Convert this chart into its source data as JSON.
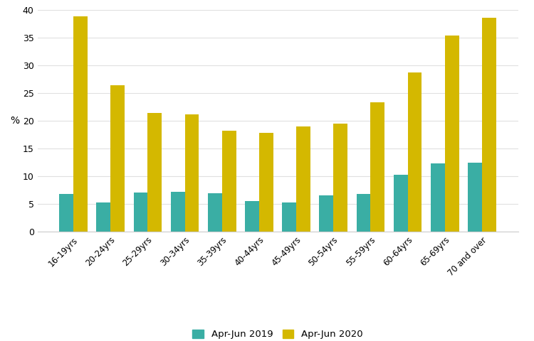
{
  "categories": [
    "16-19yrs",
    "20-24yrs",
    "25-29yrs",
    "30-34yrs",
    "35-39yrs",
    "40-44yrs",
    "45-49yrs",
    "50-54yrs",
    "55-59yrs",
    "60-64yrs",
    "65-69yrs",
    "70 and over"
  ],
  "apr_jun_2019": [
    6.9,
    5.3,
    7.1,
    7.2,
    7.0,
    5.6,
    5.3,
    6.6,
    6.9,
    10.3,
    12.3,
    12.5
  ],
  "apr_jun_2020": [
    38.9,
    26.5,
    21.4,
    21.2,
    18.3,
    17.9,
    19.0,
    19.5,
    23.4,
    28.8,
    35.5,
    38.6
  ],
  "color_2019": "#3aaea4",
  "color_2020": "#d4b800",
  "ylabel": "%",
  "ylim": [
    0,
    40
  ],
  "yticks": [
    0,
    5,
    10,
    15,
    20,
    25,
    30,
    35,
    40
  ],
  "legend_2019": "Apr-Jun 2019",
  "legend_2020": "Apr-Jun 2020",
  "background_color": "#ffffff",
  "grid_color": "#e0e0e0",
  "bar_width": 0.38,
  "figwidth": 7.5,
  "figheight": 4.8,
  "dpi": 100
}
